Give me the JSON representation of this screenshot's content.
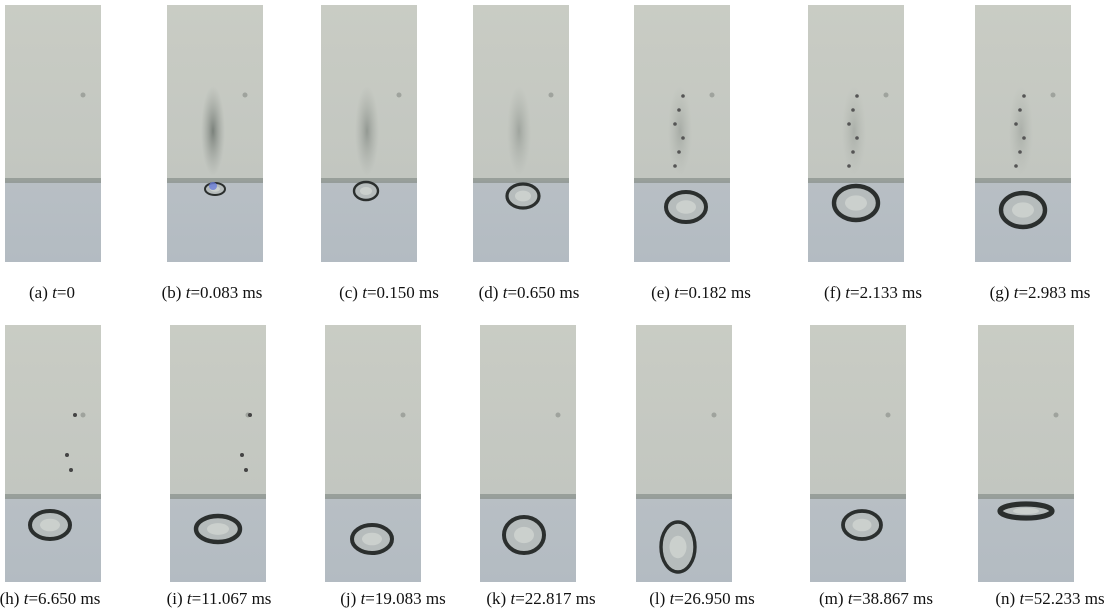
{
  "variable": "t",
  "panels": [
    {
      "label": "(a)",
      "time": "=0"
    },
    {
      "label": "(b)",
      "time": "=0.083 ms"
    },
    {
      "label": "(c)",
      "time": "=0.150 ms"
    },
    {
      "label": "(d)",
      "time": "=0.650 ms"
    },
    {
      "label": "(e)",
      "time": "=0.182 ms"
    },
    {
      "label": "(f)",
      "time": "=2.133 ms"
    },
    {
      "label": "(g)",
      "time": "=2.983 ms"
    },
    {
      "label": "(h)",
      "time": "=6.650 ms"
    },
    {
      "label": "(i)",
      "time": "=11.067 ms"
    },
    {
      "label": "(j)",
      "time": "=19.083 ms"
    },
    {
      "label": "(k)",
      "time": "=22.817 ms"
    },
    {
      "label": "(l)",
      "time": "=26.950 ms"
    },
    {
      "label": "(m)",
      "time": "=38.867 ms"
    },
    {
      "label": "(n)",
      "time": "=52.233 ms"
    }
  ]
}
